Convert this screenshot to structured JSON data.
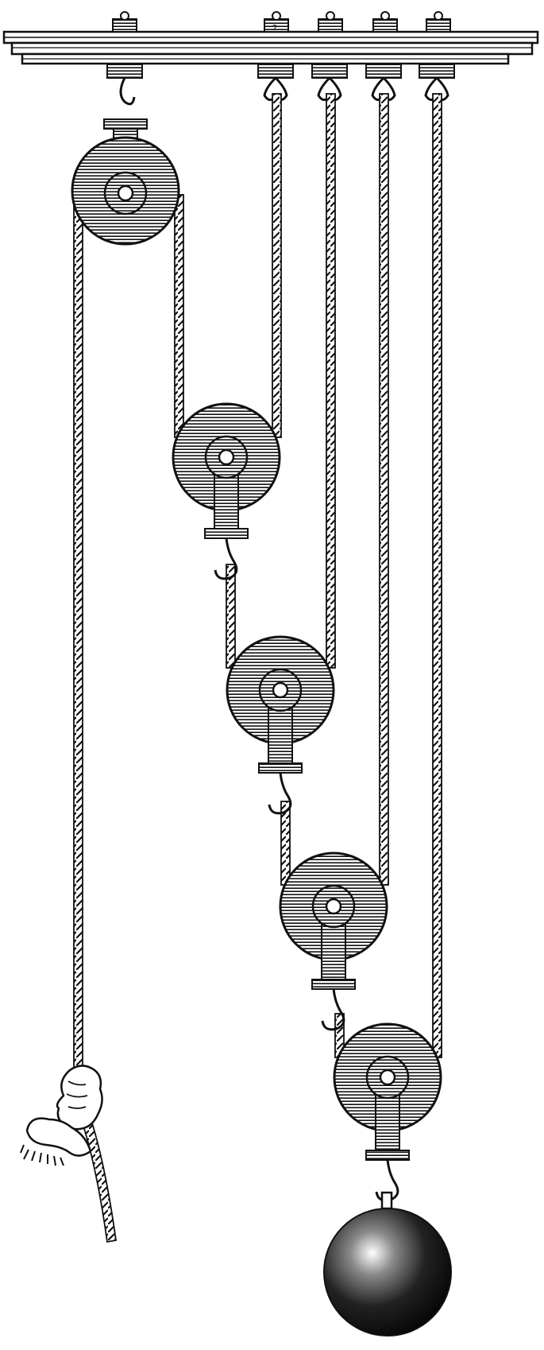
{
  "figure": {
    "ceiling_mount_labels": [
      "2"
    ],
    "pulley_count": 5,
    "ceiling_hook_count": 5,
    "colors": {
      "ink": "#111111",
      "paper": "#ffffff"
    }
  }
}
